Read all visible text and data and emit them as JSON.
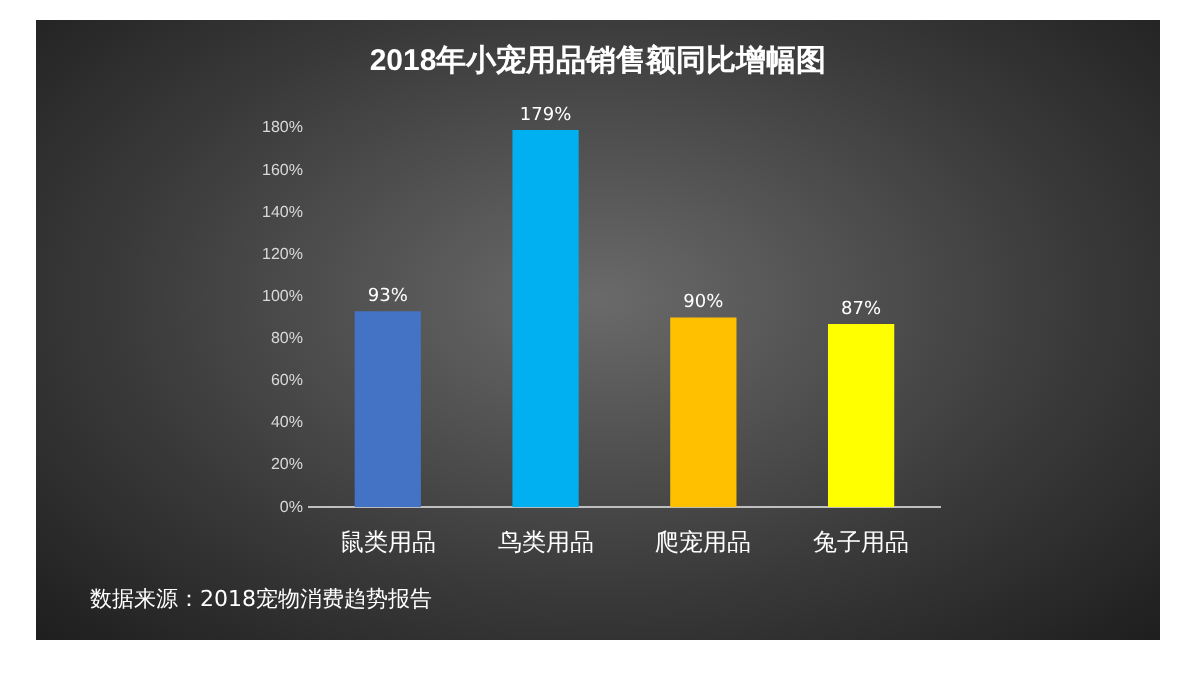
{
  "chart_data": {
    "type": "bar",
    "title": "2018年小宠用品销售额同比增幅图",
    "categories": [
      "鼠类用品",
      "鸟类用品",
      "爬宠用品",
      "兔子用品"
    ],
    "values": [
      93,
      179,
      90,
      87
    ],
    "colors": [
      "#4472c4",
      "#00b0f0",
      "#ffc000",
      "#ffff00"
    ],
    "value_labels": [
      "93%",
      "179%",
      "90%",
      "87%"
    ],
    "ylim": [
      0,
      180
    ],
    "yticks": [
      {
        "value": 0,
        "label": "0%"
      },
      {
        "value": 20,
        "label": "20%"
      },
      {
        "value": 40,
        "label": "40%"
      },
      {
        "value": 60,
        "label": "60%"
      },
      {
        "value": 80,
        "label": "80%"
      },
      {
        "value": 100,
        "label": "100%"
      },
      {
        "value": 120,
        "label": "120%"
      },
      {
        "value": 140,
        "label": "140%"
      },
      {
        "value": 160,
        "label": "160%"
      },
      {
        "value": 180,
        "label": "180%"
      }
    ],
    "grid": false,
    "legend": false,
    "annotations": [
      "数据来源：2018宠物消费趋势报告"
    ]
  }
}
